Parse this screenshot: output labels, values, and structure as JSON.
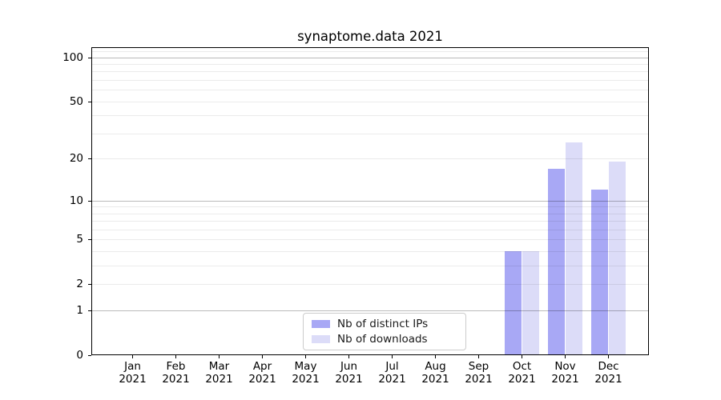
{
  "chart_data": {
    "type": "bar",
    "title": "synaptome.data 2021",
    "categories": [
      "Jan 2021",
      "Feb 2021",
      "Mar 2021",
      "Apr 2021",
      "May 2021",
      "Jun 2021",
      "Jul 2021",
      "Aug 2021",
      "Sep 2021",
      "Oct 2021",
      "Nov 2021",
      "Dec 2021"
    ],
    "x_tick_line1": [
      "Jan",
      "Feb",
      "Mar",
      "Apr",
      "May",
      "Jun",
      "Jul",
      "Aug",
      "Sep",
      "Oct",
      "Nov",
      "Dec"
    ],
    "x_tick_line2": "2021",
    "series": [
      {
        "name": "Nb of distinct IPs",
        "color": "#a8a8f5",
        "values": [
          0,
          0,
          0,
          0,
          0,
          0,
          0,
          0,
          0,
          4,
          17,
          12
        ]
      },
      {
        "name": "Nb of downloads",
        "color": "#dcdcf8",
        "values": [
          0,
          0,
          0,
          0,
          0,
          0,
          0,
          0,
          0,
          4,
          26,
          19
        ]
      }
    ],
    "y_axis": {
      "scale": "log10(1+x)",
      "tick_values": [
        0,
        1,
        2,
        5,
        10,
        20,
        50,
        100
      ],
      "tick_labels": [
        "0",
        "1",
        "2",
        "5",
        "10",
        "20",
        "50",
        "100"
      ],
      "major_gridlines": [
        1,
        10,
        100
      ],
      "minor_gridlines": [
        2,
        3,
        4,
        5,
        6,
        7,
        8,
        9,
        20,
        30,
        40,
        50,
        60,
        70,
        80,
        90,
        110
      ],
      "min": 0,
      "max": 117
    },
    "legend": {
      "position": "lower center",
      "items": [
        "Nb of distinct IPs",
        "Nb of downloads"
      ]
    },
    "grid": true,
    "colors": {
      "major_grid": "rgba(0,0,0,0.27)",
      "minor_grid": "rgba(0,0,0,0.08)",
      "spine": "#000000",
      "background": "#ffffff"
    }
  }
}
